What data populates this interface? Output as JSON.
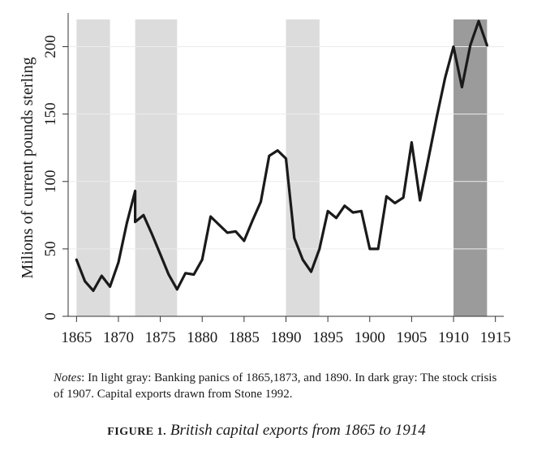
{
  "chart_data": {
    "type": "line",
    "ylabel": "Milions of current pounds sterling",
    "xlim": [
      1864,
      1916
    ],
    "ylim": [
      0,
      225
    ],
    "x_ticks": [
      1865,
      1870,
      1875,
      1880,
      1885,
      1890,
      1895,
      1900,
      1905,
      1910,
      1915
    ],
    "y_ticks": [
      0,
      50,
      100,
      150,
      200
    ],
    "grid": true,
    "shaded_periods": [
      {
        "start": 1865,
        "end": 1869,
        "shade": "light",
        "color": "#dcdcdc"
      },
      {
        "start": 1872,
        "end": 1877,
        "shade": "light",
        "color": "#dcdcdc"
      },
      {
        "start": 1890,
        "end": 1894,
        "shade": "light",
        "color": "#dcdcdc"
      },
      {
        "start": 1910,
        "end": 1914,
        "shade": "dark",
        "color": "#9b9b9b"
      }
    ],
    "line_color": "#1a1a1a",
    "series": [
      {
        "x": [
          1865,
          1866,
          1867,
          1868,
          1869,
          1870,
          1871,
          1872,
          1872,
          1873,
          1874,
          1875,
          1876,
          1877,
          1878,
          1879,
          1880,
          1881,
          1882,
          1883,
          1884,
          1885,
          1886,
          1887,
          1888,
          1889,
          1890,
          1891,
          1892,
          1893,
          1894,
          1895,
          1896,
          1897,
          1898,
          1899,
          1900,
          1901,
          1902,
          1903,
          1904,
          1905,
          1906,
          1907,
          1908,
          1909,
          1910,
          1911,
          1912,
          1913,
          1914
        ],
        "y": [
          42,
          26,
          19,
          30,
          22,
          40,
          69,
          93,
          70,
          75,
          61,
          46,
          31,
          20,
          32,
          31,
          42,
          74,
          68,
          62,
          63,
          56,
          71,
          85,
          119,
          123,
          117,
          58,
          42,
          33,
          50,
          78,
          73,
          82,
          77,
          78,
          50,
          50,
          89,
          84,
          88,
          129,
          86,
          117,
          148,
          177,
          200,
          170,
          201,
          219,
          201
        ]
      }
    ]
  },
  "notes": {
    "label": "Notes",
    "text": ": In light gray: Banking panics of 1865,1873, and 1890. In dark gray: The stock crisis of 1907. Capital exports drawn from Stone 1992."
  },
  "caption": {
    "label": "FIGURE 1.",
    "title": "British capital exports from 1865 to 1914"
  }
}
